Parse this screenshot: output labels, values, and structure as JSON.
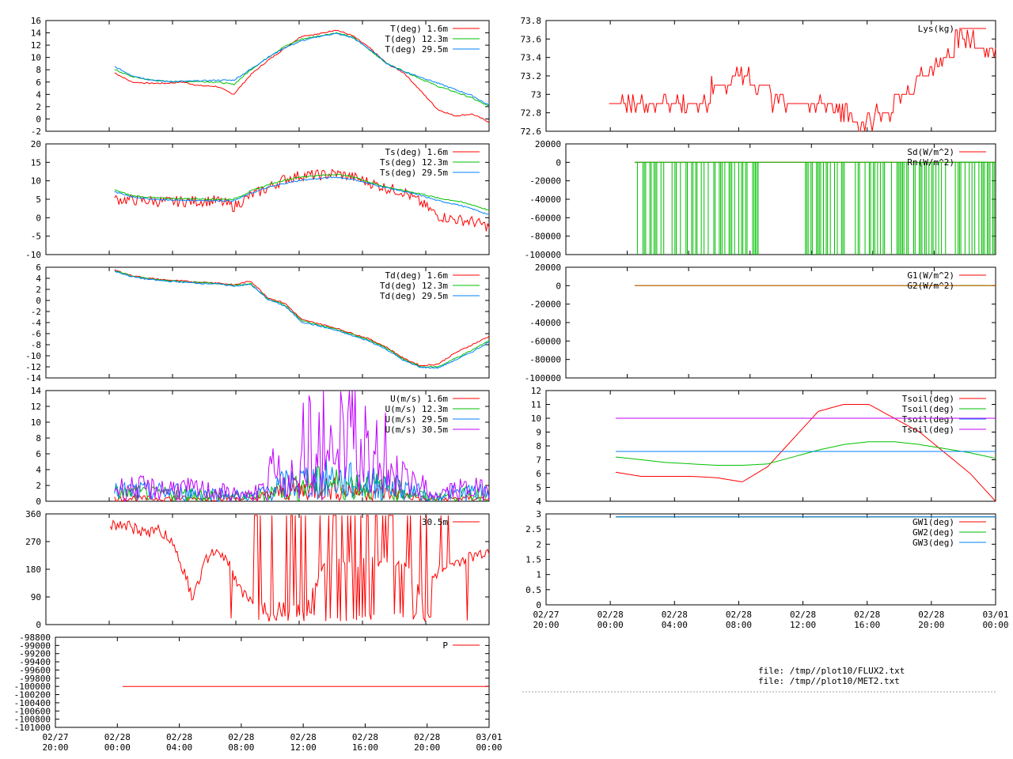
{
  "colors": {
    "red": "#ff0000",
    "green": "#00c000",
    "blue": "#0080ff",
    "purple": "#c000ff",
    "olive": "#a08000",
    "grid": "#a0a0a0"
  },
  "files": [
    "file: /tmp//plot10/FLUX2.txt",
    "file: /tmp//plot10/MET2.txt"
  ],
  "chart_data": [
    {
      "type": "line",
      "yticks": [
        "-2",
        "0",
        "2",
        "4",
        "6",
        "8",
        "10",
        "12",
        "14",
        "16"
      ],
      "ylim": [
        -2,
        16
      ],
      "legend_position": "top-right",
      "series": [
        {
          "name": "T(deg)  1.6m",
          "color": "red",
          "values": [
            7.5,
            6.0,
            5.8,
            5.8,
            6.0,
            5.4,
            5.3,
            4.0,
            7.2,
            9.5,
            11.5,
            13.5,
            13.8,
            14.5,
            13.5,
            11.5,
            9.0,
            7.5,
            4.5,
            1.5,
            0.5,
            0.8,
            -0.5
          ]
        },
        {
          "name": "T(deg) 12.3m",
          "color": "green",
          "values": [
            8.0,
            6.9,
            6.4,
            6.1,
            6.1,
            6.1,
            6.0,
            5.6,
            8.0,
            10.0,
            11.8,
            13.0,
            13.5,
            14.0,
            13.3,
            11.2,
            9.0,
            7.8,
            6.5,
            5.3,
            4.4,
            3.4,
            2.0
          ]
        },
        {
          "name": "T(deg) 29.5m",
          "color": "blue",
          "values": [
            8.5,
            7.1,
            6.4,
            6.1,
            6.1,
            6.2,
            6.3,
            6.3,
            8.1,
            10.0,
            11.6,
            12.7,
            13.4,
            13.9,
            13.2,
            11.3,
            9.0,
            7.7,
            6.8,
            5.8,
            4.8,
            3.8,
            2.2
          ]
        }
      ],
      "x_start": "02/28 00:00",
      "x_end": "03/01 00:00"
    },
    {
      "type": "line",
      "yticks": [
        "-10",
        "-5",
        "0",
        "5",
        "10",
        "15",
        "20"
      ],
      "ylim": [
        -10,
        20
      ],
      "legend_position": "top-right",
      "series": [
        {
          "name": "Ts(deg)  1.6m",
          "color": "red",
          "values": [
            5.0,
            4.8,
            4.6,
            4.3,
            4.4,
            4.5,
            4.6,
            3.0,
            6.0,
            8.0,
            10.5,
            11.5,
            11.5,
            12.0,
            11.0,
            9.5,
            8.0,
            7.0,
            4.0,
            0.5,
            -0.5,
            -1.0,
            -2.5
          ]
        },
        {
          "name": "Ts(deg) 12.3m",
          "color": "green",
          "values": [
            7.5,
            6.0,
            5.5,
            5.2,
            5.2,
            5.1,
            5.0,
            5.0,
            7.2,
            8.9,
            10.2,
            11.1,
            11.4,
            11.8,
            11.1,
            9.6,
            8.3,
            7.3,
            6.5,
            5.3,
            4.6,
            3.5,
            2.0
          ]
        },
        {
          "name": "Ts(deg) 29.5m",
          "color": "blue",
          "values": [
            7.0,
            5.7,
            5.1,
            4.8,
            4.7,
            4.7,
            4.6,
            4.6,
            6.6,
            8.2,
            9.3,
            10.2,
            10.6,
            11.0,
            10.4,
            9.2,
            8.1,
            7.1,
            6.0,
            4.6,
            3.7,
            2.4,
            0.8
          ]
        }
      ]
    },
    {
      "type": "line",
      "yticks": [
        "-14",
        "-12",
        "-10",
        "-8",
        "-6",
        "-4",
        "-2",
        "0",
        "2",
        "4",
        "6"
      ],
      "ylim": [
        -14,
        6
      ],
      "legend_position": "top-right",
      "series": [
        {
          "name": "Td(deg)  1.6m",
          "color": "red",
          "values": [
            5.5,
            4.5,
            4.0,
            3.7,
            3.5,
            3.3,
            3.2,
            2.8,
            3.5,
            0.5,
            -0.5,
            -3.5,
            -4.2,
            -5.0,
            -6.0,
            -7.0,
            -8.5,
            -10.5,
            -11.8,
            -11.5,
            -9.5,
            -8.0,
            -6.5
          ]
        },
        {
          "name": "Td(deg) 12.3m",
          "color": "green",
          "values": [
            5.4,
            4.4,
            3.9,
            3.6,
            3.4,
            3.2,
            3.1,
            2.7,
            3.0,
            0.3,
            -0.8,
            -3.7,
            -4.4,
            -5.2,
            -6.2,
            -7.2,
            -8.7,
            -10.7,
            -12.0,
            -12.0,
            -10.5,
            -9.0,
            -7.2
          ]
        },
        {
          "name": "Td(deg) 29.5m",
          "color": "blue",
          "values": [
            5.3,
            4.3,
            3.8,
            3.5,
            3.3,
            3.1,
            3.0,
            2.6,
            2.9,
            0.2,
            -1.0,
            -3.9,
            -4.6,
            -5.4,
            -6.4,
            -7.4,
            -8.9,
            -10.9,
            -12.1,
            -12.2,
            -10.8,
            -9.3,
            -7.5
          ]
        }
      ]
    },
    {
      "type": "line",
      "yticks": [
        "0",
        "2",
        "4",
        "6",
        "8",
        "10",
        "12",
        "14"
      ],
      "ylim": [
        0,
        14
      ],
      "legend_position": "top-right",
      "series": [
        {
          "name": "U(m/s)  1.6m",
          "color": "red",
          "values": [
            0.5,
            0.6,
            0.5,
            0.6,
            0.5,
            0.5,
            0.6,
            0.4,
            1.5,
            2.0,
            2.5,
            2.5,
            2.0,
            2.0,
            1.5,
            1.0,
            0.3,
            0.5,
            0.6,
            0.5
          ]
        },
        {
          "name": "U(m/s) 12.3m",
          "color": "green",
          "values": [
            1.5,
            1.6,
            1.4,
            1.5,
            1.4,
            1.2,
            1.0,
            0.8,
            2.0,
            3.0,
            3.5,
            3.5,
            3.2,
            3.0,
            2.5,
            2.0,
            0.5,
            1.2,
            1.5,
            1.3
          ]
        },
        {
          "name": "U(m/s) 29.5m",
          "color": "blue",
          "values": [
            1.8,
            2.0,
            1.8,
            1.9,
            1.7,
            1.5,
            1.2,
            1.0,
            2.5,
            3.5,
            4.0,
            4.2,
            3.8,
            3.5,
            3.0,
            2.4,
            0.8,
            1.5,
            1.8,
            1.6
          ]
        },
        {
          "name": "U(m/s) 30.5m",
          "color": "purple",
          "values": [
            2.4,
            2.6,
            2.3,
            2.5,
            2.2,
            2.0,
            1.5,
            1.0,
            3.0,
            4.0,
            5.0,
            6.0,
            6.5,
            5.5,
            4.0,
            3.0,
            1.0,
            2.0,
            2.4,
            2.2
          ],
          "peaks": [
            0,
            0,
            0,
            0,
            0,
            0,
            0,
            0,
            6.0,
            8.5,
            11.0,
            13.5,
            12.5,
            11.0,
            9.0,
            7.0,
            0,
            0,
            0,
            0
          ]
        }
      ]
    },
    {
      "type": "line",
      "yticks": [
        "0",
        "90",
        "180",
        "270",
        "360"
      ],
      "ylim": [
        0,
        360
      ],
      "legend_position": "top-right",
      "series": [
        {
          "name": "30.5m",
          "color": "red",
          "values": [
            330,
            320,
            300,
            310,
            250,
            90,
            230,
            220,
            100,
            60,
            55,
            60,
            70,
            200,
            200,
            200,
            200,
            200,
            200,
            90,
            180,
            200,
            220,
            240
          ]
        }
      ]
    },
    {
      "type": "line",
      "yticks": [
        "-101000",
        "-100800",
        "-100600",
        "-100400",
        "-100200",
        "-100000",
        "-99800",
        "-99600",
        "-99400",
        "-99200",
        "-99000",
        "-98800"
      ],
      "ylim": [
        -101000,
        -98800
      ],
      "legend_position": "top-right",
      "series": [
        {
          "name": "P",
          "color": "red",
          "values": [
            -100000,
            -100000
          ]
        }
      ],
      "xticks": [
        [
          "02/27",
          "20:00"
        ],
        [
          "02/28",
          "00:00"
        ],
        [
          "02/28",
          "04:00"
        ],
        [
          "02/28",
          "08:00"
        ],
        [
          "02/28",
          "12:00"
        ],
        [
          "02/28",
          "16:00"
        ],
        [
          "02/28",
          "20:00"
        ],
        [
          "03/01",
          "00:00"
        ]
      ]
    },
    {
      "type": "line",
      "yticks": [
        "72.6",
        "72.8",
        "73",
        "73.2",
        "73.4",
        "73.6",
        "73.8"
      ],
      "ylim": [
        72.6,
        73.8
      ],
      "legend_position": "top-right",
      "series": [
        {
          "name": "Lys(kg)",
          "color": "red",
          "values": [
            72.9,
            72.9,
            72.9,
            72.9,
            72.9,
            73.1,
            73.2,
            73.1,
            72.9,
            72.9,
            72.9,
            72.8,
            72.7,
            72.8,
            73.0,
            73.2,
            73.4,
            73.6,
            73.5,
            73.5
          ]
        }
      ]
    },
    {
      "type": "line",
      "yticks": [
        "-100000",
        "-80000",
        "-60000",
        "-40000",
        "-20000",
        "0",
        "20000"
      ],
      "ylim": [
        -100000,
        20000
      ],
      "legend_position": "top-right",
      "series": [
        {
          "name": "Sd(W/m^2)",
          "color": "red",
          "values": [
            0,
            0
          ]
        },
        {
          "name": "Rn(W/m^2)",
          "color": "green",
          "values": [
            0,
            0
          ]
        }
      ]
    },
    {
      "type": "line",
      "yticks": [
        "-100000",
        "-80000",
        "-60000",
        "-40000",
        "-20000",
        "0",
        "20000"
      ],
      "ylim": [
        -100000,
        20000
      ],
      "legend_position": "top-right",
      "series": [
        {
          "name": "G1(W/m^2)",
          "color": "red",
          "values": [
            0,
            0
          ]
        },
        {
          "name": "G2(W/m^2)",
          "color": "olive",
          "values": [
            0,
            0
          ]
        }
      ]
    },
    {
      "type": "line",
      "yticks": [
        "4",
        "5",
        "6",
        "7",
        "8",
        "9",
        "10",
        "11",
        "12"
      ],
      "ylim": [
        4,
        12
      ],
      "legend_position": "top-right",
      "series": [
        {
          "name": "Tsoil(deg)",
          "color": "red",
          "values": [
            6.1,
            5.8,
            5.8,
            5.8,
            5.7,
            5.4,
            6.5,
            8.5,
            10.5,
            11.0,
            11.0,
            10.0,
            9.0,
            7.5,
            6.0,
            4.0
          ]
        },
        {
          "name": "Tsoil(deg)",
          "color": "green",
          "values": [
            7.2,
            7.0,
            6.8,
            6.7,
            6.6,
            6.6,
            6.7,
            7.2,
            7.7,
            8.1,
            8.3,
            8.3,
            8.1,
            7.8,
            7.5,
            7.1
          ]
        },
        {
          "name": "Tsoil(deg)",
          "color": "blue",
          "values": [
            7.6,
            7.6,
            7.6,
            7.6,
            7.6,
            7.6,
            7.6,
            7.6,
            7.6,
            7.6,
            7.6,
            7.6,
            7.6,
            7.6,
            7.6,
            7.6
          ]
        },
        {
          "name": "Tsoil(deg)",
          "color": "purple",
          "values": [
            10.0,
            10.0,
            10.0,
            10.0,
            10.0,
            10.0,
            10.0,
            10.0,
            10.0,
            10.0,
            10.0,
            10.0,
            10.0,
            10.0,
            10.0,
            10.0
          ]
        }
      ]
    },
    {
      "type": "line",
      "yticks": [
        "0",
        "0.5",
        "1",
        "1.5",
        "2",
        "2.5",
        "3"
      ],
      "ylim": [
        0,
        3
      ],
      "legend_position": "top-right",
      "series": [
        {
          "name": "GW1(deg)",
          "color": "red",
          "values": [
            2.9,
            2.9
          ]
        },
        {
          "name": "GW2(deg)",
          "color": "green",
          "values": [
            2.9,
            2.9
          ]
        },
        {
          "name": "GW3(deg)",
          "color": "blue",
          "values": [
            2.9,
            2.9
          ]
        }
      ],
      "xticks": [
        [
          "02/27",
          "20:00"
        ],
        [
          "02/28",
          "00:00"
        ],
        [
          "02/28",
          "04:00"
        ],
        [
          "02/28",
          "08:00"
        ],
        [
          "02/28",
          "12:00"
        ],
        [
          "02/28",
          "16:00"
        ],
        [
          "02/28",
          "20:00"
        ],
        [
          "03/01",
          "00:00"
        ]
      ]
    }
  ]
}
